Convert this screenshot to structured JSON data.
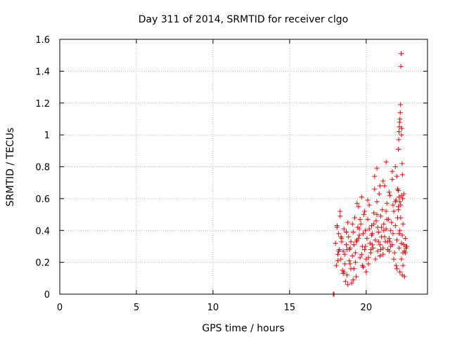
{
  "chart_data": {
    "type": "scatter",
    "title": "Day 311 of 2014, SRMTID for receiver clgo",
    "xlabel": "GPS time / hours",
    "ylabel": "SRMTID / TECUs",
    "xlim": [
      0,
      24
    ],
    "ylim": [
      0,
      1.6
    ],
    "xticks": [
      "0",
      "5",
      "10",
      "15",
      "20"
    ],
    "xtick_values": [
      0,
      5,
      10,
      15,
      20
    ],
    "yticks": [
      "0",
      "0.2",
      "0.4",
      "0.6",
      "0.8",
      "1",
      "1.2",
      "1.4",
      "1.6"
    ],
    "ytick_values": [
      0,
      0.2,
      0.4,
      0.6,
      0.8,
      1.0,
      1.2,
      1.4,
      1.6
    ],
    "grid": true,
    "marker": "+",
    "series": [
      {
        "name": "SRMTID",
        "color": "#ff0000",
        "x": [
          17.85,
          17.87,
          17.9,
          18.0,
          18.05,
          18.1,
          18.15,
          18.2,
          18.25,
          18.3,
          18.35,
          18.4,
          18.45,
          18.5,
          18.55,
          18.6,
          18.65,
          18.7,
          18.75,
          18.8,
          18.85,
          18.9,
          18.95,
          19.0,
          19.05,
          19.1,
          19.15,
          19.2,
          19.25,
          19.3,
          19.35,
          19.4,
          19.45,
          19.5,
          19.55,
          19.6,
          19.65,
          19.7,
          19.75,
          19.8,
          19.85,
          19.9,
          19.95,
          20.0,
          20.05,
          20.1,
          20.15,
          20.2,
          20.25,
          20.3,
          20.35,
          20.4,
          20.45,
          20.5,
          20.55,
          20.6,
          20.65,
          20.7,
          20.75,
          20.8,
          20.85,
          20.9,
          20.95,
          21.0,
          21.05,
          21.1,
          21.15,
          21.2,
          21.25,
          21.3,
          21.35,
          21.4,
          21.45,
          21.5,
          21.55,
          21.6,
          21.65,
          21.7,
          21.75,
          21.8,
          21.85,
          21.9,
          21.95,
          22.0,
          22.05,
          22.1,
          22.15,
          22.2,
          22.25,
          22.3,
          22.35,
          22.4,
          22.45,
          22.5,
          22.55,
          22.6,
          22.65,
          18.1,
          18.2,
          18.3,
          18.4,
          18.5,
          18.6,
          18.7,
          18.8,
          18.9,
          19.0,
          19.1,
          19.2,
          19.3,
          19.4,
          19.5,
          19.6,
          19.7,
          19.8,
          19.9,
          20.0,
          20.1,
          20.2,
          20.3,
          20.4,
          20.5,
          20.6,
          20.7,
          20.8,
          20.9,
          21.0,
          21.1,
          21.2,
          21.3,
          21.4,
          21.5,
          21.6,
          21.7,
          21.8,
          21.9,
          22.0,
          22.1,
          22.2,
          22.3,
          22.4,
          22.5,
          22.6,
          18.15,
          18.35,
          18.55,
          18.75,
          18.95,
          19.15,
          19.35,
          19.55,
          19.75,
          19.95,
          20.15,
          20.35,
          20.55,
          20.75,
          20.95,
          21.15,
          21.35,
          21.55,
          21.75,
          21.95,
          22.15,
          22.35,
          22.55,
          22.1,
          22.12,
          22.14,
          22.16,
          22.18,
          22.2,
          22.22,
          22.24,
          22.26,
          22.28,
          22.3,
          22.32,
          22.34,
          22.36,
          22.38,
          20.7,
          20.9,
          21.1,
          21.3,
          21.5,
          21.7,
          21.9,
          22.0,
          22.05,
          22.1,
          22.15,
          22.2,
          22.25,
          22.3,
          22.4,
          22.45
        ],
        "y": [
          0.0,
          0.0,
          0.0,
          0.32,
          0.18,
          0.43,
          0.25,
          0.38,
          0.28,
          0.52,
          0.22,
          0.35,
          0.15,
          0.27,
          0.41,
          0.19,
          0.08,
          0.31,
          0.12,
          0.45,
          0.36,
          0.21,
          0.29,
          0.33,
          0.07,
          0.24,
          0.39,
          0.16,
          0.48,
          0.26,
          0.11,
          0.34,
          0.42,
          0.55,
          0.37,
          0.23,
          0.44,
          0.61,
          0.3,
          0.17,
          0.5,
          0.28,
          0.4,
          0.22,
          0.35,
          0.47,
          0.19,
          0.56,
          0.32,
          0.26,
          0.43,
          0.38,
          0.29,
          0.51,
          0.74,
          0.34,
          0.46,
          0.58,
          0.27,
          0.39,
          0.63,
          0.31,
          0.49,
          0.36,
          0.53,
          0.25,
          0.44,
          0.68,
          0.33,
          0.41,
          0.57,
          0.28,
          0.47,
          0.35,
          0.62,
          0.3,
          0.45,
          0.72,
          0.38,
          0.52,
          0.26,
          0.43,
          0.59,
          0.34,
          0.48,
          0.65,
          0.29,
          0.4,
          0.56,
          0.22,
          0.37,
          0.18,
          0.31,
          0.27,
          0.35,
          0.29,
          0.3,
          0.42,
          0.27,
          0.49,
          0.33,
          0.13,
          0.25,
          0.39,
          0.06,
          0.28,
          0.16,
          0.44,
          0.31,
          0.2,
          0.57,
          0.35,
          0.47,
          0.25,
          0.38,
          0.52,
          0.14,
          0.59,
          0.41,
          0.28,
          0.31,
          0.44,
          0.22,
          0.5,
          0.33,
          0.24,
          0.42,
          0.29,
          0.36,
          0.52,
          0.33,
          0.27,
          0.4,
          0.31,
          0.22,
          0.58,
          0.16,
          0.53,
          0.14,
          0.32,
          0.26,
          0.11,
          0.3,
          0.21,
          0.36,
          0.14,
          0.28,
          0.19,
          0.09,
          0.33,
          0.41,
          0.18,
          0.3,
          0.23,
          0.37,
          0.66,
          0.42,
          0.28,
          0.4,
          0.47,
          0.33,
          0.56,
          0.18,
          0.38,
          0.12,
          0.26,
          0.91,
          0.97,
          1.02,
          1.05,
          1.08,
          1.1,
          1.14,
          1.19,
          1.43,
          1.51,
          1.0,
          1.04,
          0.82,
          0.75,
          0.6,
          0.79,
          0.68,
          0.71,
          0.83,
          0.64,
          0.77,
          0.8,
          0.74,
          0.66,
          0.55,
          0.61,
          0.58,
          0.48,
          0.62,
          0.44,
          0.63
        ]
      }
    ]
  }
}
